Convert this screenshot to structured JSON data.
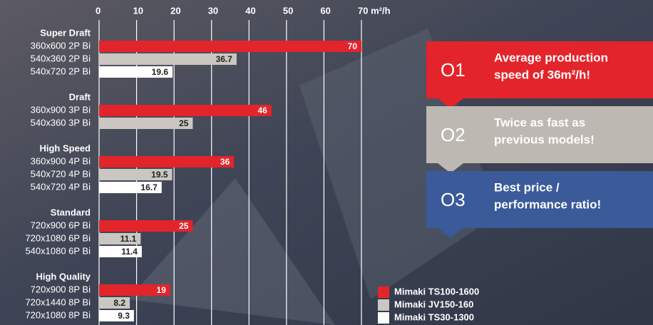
{
  "chart_data": {
    "type": "bar",
    "orientation": "horizontal",
    "xlim": [
      0,
      70
    ],
    "xticks": [
      0,
      10,
      20,
      30,
      40,
      50,
      60,
      {
        "value": 70,
        "label": "70 m²/h"
      }
    ],
    "grid": true,
    "groups": [
      {
        "name": "Super Draft",
        "categories": [
          "360x600 2P Bi",
          "540x360 2P Bi",
          "540x720 2P Bi"
        ],
        "values": [
          70,
          36.7,
          19.6
        ],
        "colors": [
          "#e3242b",
          "#cbc6bf",
          "#ffffff"
        ]
      },
      {
        "name": "Draft",
        "categories": [
          "360x900 3P Bi",
          "540x360 3P Bi"
        ],
        "values": [
          46,
          25
        ],
        "colors": [
          "#e3242b",
          "#cbc6bf"
        ]
      },
      {
        "name": "High Speed",
        "categories": [
          "360x900 4P Bi",
          "540x720 4P Bi",
          "540x720 4P Bi"
        ],
        "values": [
          36,
          19.5,
          16.7
        ],
        "colors": [
          "#e3242b",
          "#cbc6bf",
          "#ffffff"
        ]
      },
      {
        "name": "Standard",
        "categories": [
          "720x900 6P Bi",
          "720x1080 6P Bi",
          "540x1080 6P Bi"
        ],
        "values": [
          25,
          11.1,
          11.4
        ],
        "colors": [
          "#e3242b",
          "#cbc6bf",
          "#ffffff"
        ]
      },
      {
        "name": "High Quality",
        "categories": [
          "720x900 8P Bi",
          "720x1440 8P Bi",
          "720x1080 8P Bi"
        ],
        "values": [
          19,
          8.2,
          9.3
        ],
        "colors": [
          "#e3242b",
          "#cbc6bf",
          "#ffffff"
        ]
      }
    ],
    "legend": [
      {
        "name": "Mimaki TS100-1600",
        "color": "#e3242b"
      },
      {
        "name": "Mimaki JV150-160",
        "color": "#cbc6bf"
      },
      {
        "name": "Mimaki TS30-1300",
        "color": "#ffffff"
      }
    ]
  },
  "panels": [
    {
      "number": "O1",
      "text": [
        "Average production",
        "speed of 36m²/h!"
      ],
      "color": "#e3242b"
    },
    {
      "number": "O2",
      "text": [
        "Twice as fast as",
        "previous models!"
      ],
      "color": "#bdb8b1"
    },
    {
      "number": "O3",
      "text": [
        "Best price /",
        "performance ratio!"
      ],
      "color": "#3a5a9a"
    }
  ]
}
